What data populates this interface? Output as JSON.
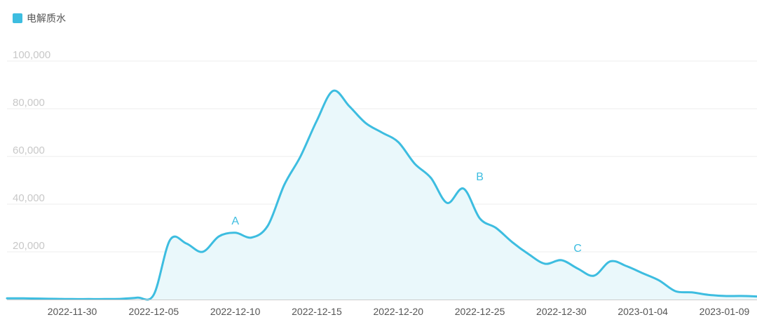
{
  "colors": {
    "series": "#3dbde0",
    "area_fill": "#eaf8fb",
    "grid": "#eeeeee",
    "axis_tick_text": "#c8c8c8",
    "x_tick_text": "#555555"
  },
  "chart_data": {
    "type": "area",
    "title": "",
    "xlabel": "",
    "ylabel": "",
    "legend": {
      "position": "top-left",
      "entries": [
        "电解质水"
      ]
    },
    "grid": true,
    "ylim": [
      0,
      100000
    ],
    "x_range": [
      "2022-11-26",
      "2023-01-11"
    ],
    "y_ticks": [
      "20,000",
      "40,000",
      "60,000",
      "80,000",
      "100,000"
    ],
    "y_tick_values": [
      20000,
      40000,
      60000,
      80000,
      100000
    ],
    "x_ticks": [
      "2022-11-30",
      "2022-12-05",
      "2022-12-10",
      "2022-12-15",
      "2022-12-20",
      "2022-12-25",
      "2022-12-30",
      "2023-01-04",
      "2023-01-09"
    ],
    "series": [
      {
        "name": "电解质水",
        "x": [
          "2022-11-26",
          "2022-11-27",
          "2022-11-28",
          "2022-11-29",
          "2022-11-30",
          "2022-12-01",
          "2022-12-02",
          "2022-12-03",
          "2022-12-04",
          "2022-12-05",
          "2022-12-06",
          "2022-12-07",
          "2022-12-08",
          "2022-12-09",
          "2022-12-10",
          "2022-12-11",
          "2022-12-12",
          "2022-12-13",
          "2022-12-14",
          "2022-12-15",
          "2022-12-16",
          "2022-12-17",
          "2022-12-18",
          "2022-12-19",
          "2022-12-20",
          "2022-12-21",
          "2022-12-22",
          "2022-12-23",
          "2022-12-24",
          "2022-12-25",
          "2022-12-26",
          "2022-12-27",
          "2022-12-28",
          "2022-12-29",
          "2022-12-30",
          "2022-12-31",
          "2023-01-01",
          "2023-01-02",
          "2023-01-03",
          "2023-01-04",
          "2023-01-05",
          "2023-01-06",
          "2023-01-07",
          "2023-01-08",
          "2023-01-09",
          "2023-01-10",
          "2023-01-11"
        ],
        "values": [
          500,
          500,
          400,
          300,
          200,
          200,
          200,
          300,
          800,
          2000,
          25000,
          23500,
          20000,
          26500,
          28000,
          26000,
          31000,
          48000,
          60000,
          75000,
          87500,
          81000,
          74000,
          70000,
          66000,
          57000,
          51000,
          40500,
          46500,
          34000,
          30000,
          24000,
          19000,
          15000,
          16500,
          13000,
          10000,
          16000,
          14000,
          11000,
          8000,
          3500,
          3000,
          2000,
          1500,
          1500,
          1300
        ]
      }
    ],
    "annotations": [
      {
        "label": "A",
        "x": "2022-12-10",
        "y": 28000
      },
      {
        "label": "B",
        "x": "2022-12-25",
        "y": 46500
      },
      {
        "label": "C",
        "x": "2022-12-31",
        "y": 16500
      }
    ]
  }
}
